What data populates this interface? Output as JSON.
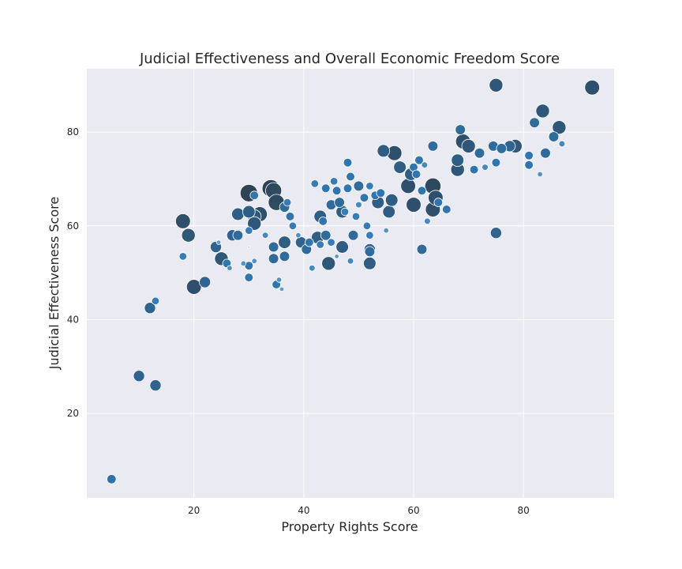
{
  "chart_data": {
    "type": "scatter",
    "title": "Judicial Effectiveness and Overall Economic Freedom Score",
    "xlabel": "Property Rights Score",
    "ylabel": "Judicial Effectiveness Score",
    "xlim": [
      0.5,
      96.5
    ],
    "ylim": [
      2.0,
      93.5
    ],
    "xticks": [
      20,
      40,
      60,
      80
    ],
    "yticks": [
      20,
      40,
      60,
      80
    ],
    "grid": true,
    "encoding": {
      "size": "Overall Economic Freedom Score (larger = higher score)",
      "color": "dark navy for higher freedom scores, lighter blue for lower"
    },
    "colors": {
      "plot_background": "#eaeaf2",
      "grid": "#ffffff",
      "darkest": "#2e4353",
      "mid": "#2f78b5",
      "light": "#8fb8de"
    },
    "points": [
      [
        5,
        6,
        58
      ],
      [
        10,
        28,
        62
      ],
      [
        13,
        26,
        62
      ],
      [
        12,
        42.5,
        62
      ],
      [
        13,
        44,
        55
      ],
      [
        18,
        61,
        68
      ],
      [
        19,
        58,
        66
      ],
      [
        18,
        53.5,
        55
      ],
      [
        20,
        47,
        68
      ],
      [
        22,
        48,
        62
      ],
      [
        24,
        55.5,
        62
      ],
      [
        24.5,
        56.5,
        48
      ],
      [
        25,
        53,
        66
      ],
      [
        26,
        52,
        57
      ],
      [
        26.5,
        51,
        50
      ],
      [
        27,
        58,
        62
      ],
      [
        28,
        58,
        60
      ],
      [
        28,
        62.5,
        64
      ],
      [
        29,
        52,
        50
      ],
      [
        30,
        55.5,
        40
      ],
      [
        30,
        67,
        72
      ],
      [
        30,
        49,
        57
      ],
      [
        30,
        51.5,
        57
      ],
      [
        30,
        59,
        55
      ],
      [
        30,
        63,
        64
      ],
      [
        31,
        62,
        66
      ],
      [
        31,
        60.5,
        66
      ],
      [
        31,
        52.5,
        50
      ],
      [
        31,
        66.5,
        57
      ],
      [
        32,
        62.5,
        68
      ],
      [
        33,
        58,
        52
      ],
      [
        34,
        68,
        72
      ],
      [
        34.5,
        67.5,
        70
      ],
      [
        35,
        65,
        70
      ],
      [
        34.5,
        55.5,
        60
      ],
      [
        34.5,
        53,
        60
      ],
      [
        35,
        47.5,
        57
      ],
      [
        35.5,
        48.5,
        50
      ],
      [
        36,
        46.5,
        48
      ],
      [
        36.5,
        64,
        60
      ],
      [
        36.5,
        56.5,
        64
      ],
      [
        36.5,
        53.5,
        60
      ],
      [
        37,
        65,
        55
      ],
      [
        37.5,
        62,
        57
      ],
      [
        38,
        60,
        55
      ],
      [
        39,
        58,
        50
      ],
      [
        39.5,
        56.5,
        62
      ],
      [
        40.5,
        55,
        60
      ],
      [
        41,
        56.5,
        57
      ],
      [
        41.5,
        51,
        52
      ],
      [
        42,
        69,
        55
      ],
      [
        42.5,
        57.5,
        64
      ],
      [
        43,
        62,
        64
      ],
      [
        43,
        56,
        55
      ],
      [
        43.5,
        61,
        57
      ],
      [
        44,
        58,
        60
      ],
      [
        44,
        68,
        57
      ],
      [
        44.5,
        52,
        66
      ],
      [
        45,
        64.5,
        60
      ],
      [
        45,
        56.5,
        55
      ],
      [
        45.5,
        69.5,
        55
      ],
      [
        46,
        53.5,
        48
      ],
      [
        46,
        67.5,
        57
      ],
      [
        46.5,
        65,
        60
      ],
      [
        47,
        63,
        64
      ],
      [
        47,
        55.5,
        64
      ],
      [
        47.5,
        63,
        55
      ],
      [
        48,
        73.5,
        57
      ],
      [
        48,
        68,
        57
      ],
      [
        48.5,
        70.5,
        57
      ],
      [
        48.5,
        52.5,
        52
      ],
      [
        49,
        58,
        60
      ],
      [
        49.5,
        62,
        55
      ],
      [
        50,
        64.5,
        52
      ],
      [
        50,
        68.5,
        60
      ],
      [
        51,
        66,
        57
      ],
      [
        51.5,
        60,
        55
      ],
      [
        52,
        55,
        62
      ],
      [
        52,
        52,
        64
      ],
      [
        52,
        54.5,
        60
      ],
      [
        52,
        58,
        55
      ],
      [
        52,
        68.5,
        55
      ],
      [
        53,
        66.5,
        57
      ],
      [
        53.5,
        65,
        64
      ],
      [
        54,
        67,
        57
      ],
      [
        54.5,
        76,
        64
      ],
      [
        55,
        59,
        50
      ],
      [
        55.5,
        63,
        64
      ],
      [
        56,
        65.5,
        64
      ],
      [
        56.5,
        75.5,
        68
      ],
      [
        57.5,
        72.5,
        64
      ],
      [
        59,
        68.5,
        68
      ],
      [
        59.5,
        71,
        64
      ],
      [
        60,
        64.5,
        68
      ],
      [
        60,
        72.5,
        57
      ],
      [
        60.5,
        71,
        57
      ],
      [
        61,
        74,
        57
      ],
      [
        61.5,
        55,
        60
      ],
      [
        61.5,
        67.5,
        57
      ],
      [
        62,
        73,
        52
      ],
      [
        62.5,
        61,
        52
      ],
      [
        63.5,
        68.5,
        70
      ],
      [
        63.5,
        63.5,
        68
      ],
      [
        63.5,
        77,
        60
      ],
      [
        64,
        66,
        68
      ],
      [
        64.5,
        65,
        57
      ],
      [
        66,
        63.5,
        57
      ],
      [
        68,
        74,
        64
      ],
      [
        68,
        72,
        66
      ],
      [
        68.5,
        80.5,
        60
      ],
      [
        69,
        78,
        68
      ],
      [
        70,
        77,
        66
      ],
      [
        71,
        72,
        57
      ],
      [
        72,
        75.5,
        60
      ],
      [
        73,
        72.5,
        52
      ],
      [
        74.5,
        77,
        60
      ],
      [
        75,
        58.5,
        62
      ],
      [
        75,
        90,
        66
      ],
      [
        75,
        73.5,
        57
      ],
      [
        76,
        76.5,
        60
      ],
      [
        77.5,
        77,
        62
      ],
      [
        78.5,
        77,
        66
      ],
      [
        81,
        75,
        57
      ],
      [
        81,
        73,
        57
      ],
      [
        82,
        82,
        60
      ],
      [
        83,
        71,
        50
      ],
      [
        83.5,
        84.5,
        66
      ],
      [
        84,
        75.5,
        60
      ],
      [
        85.5,
        79,
        60
      ],
      [
        86.5,
        81,
        66
      ],
      [
        87,
        77.5,
        52
      ],
      [
        92.5,
        89.5,
        68
      ]
    ]
  }
}
